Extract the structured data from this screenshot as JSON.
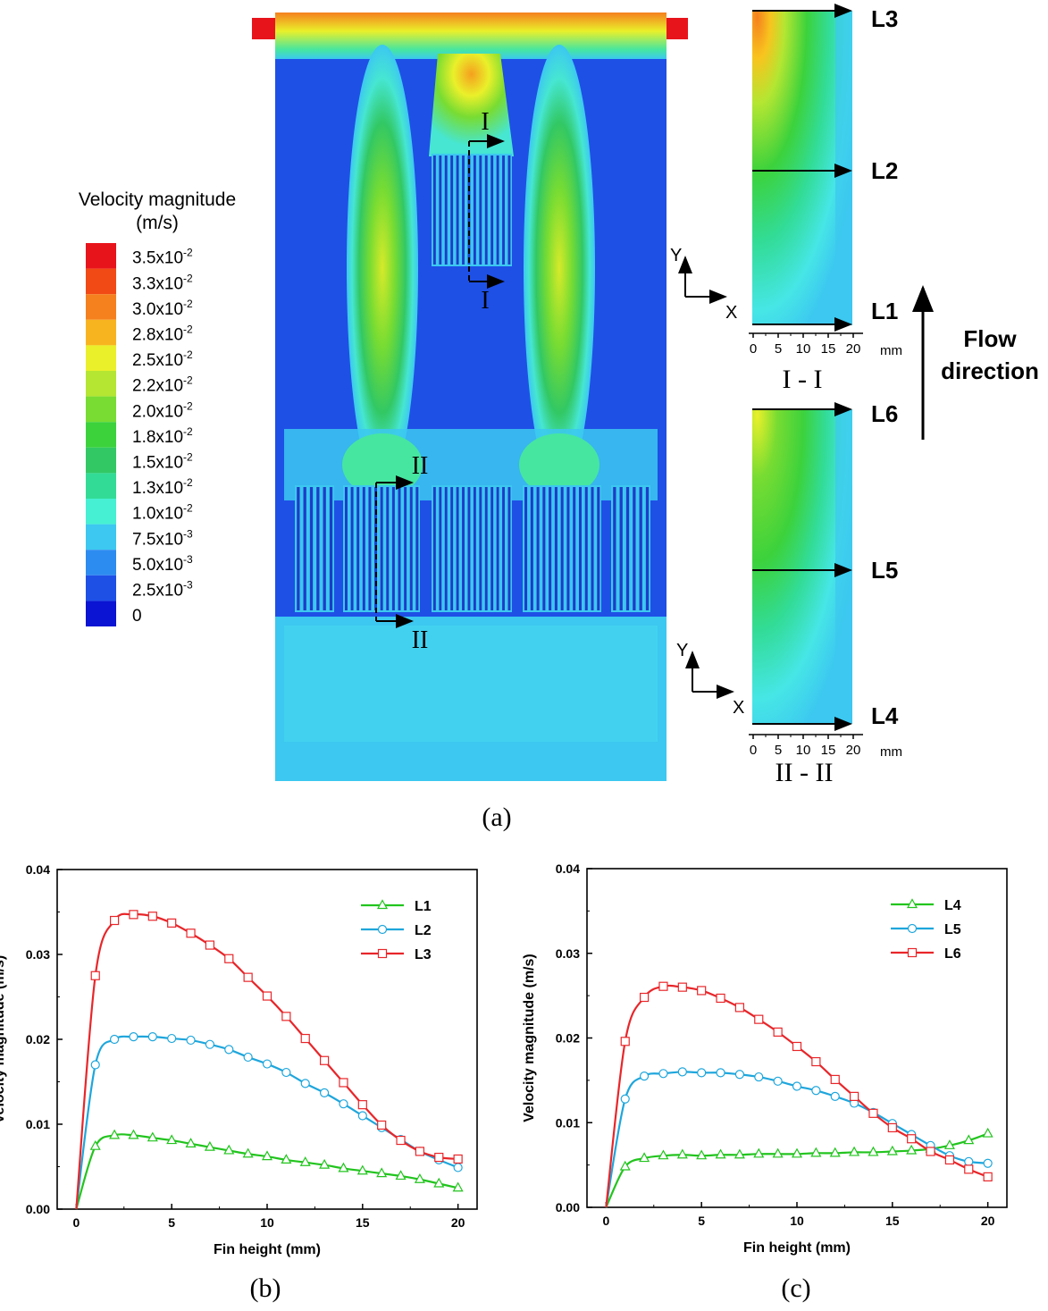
{
  "captions": {
    "a": "(a)",
    "b": "(b)",
    "c": "(c)"
  },
  "legend": {
    "title_line1": "Velocity magnitude",
    "title_line2": "(m/s)",
    "labels": [
      "3.5x10-2",
      "3.3x10-2",
      "3.0x10-2",
      "2.8x10-2",
      "2.5x10-2",
      "2.2x10-2",
      "2.0x10-2",
      "1.8x10-2",
      "1.5x10-2",
      "1.3x10-2",
      "1.0x10-2",
      "7.5x10-3",
      "5.0x10-3",
      "2.5x10-3",
      "0"
    ],
    "colors": [
      "#e8141c",
      "#f24a14",
      "#f5801e",
      "#f8b41e",
      "#eaf02a",
      "#b4e632",
      "#78dc32",
      "#3cd23c",
      "#32c864",
      "#32dc96",
      "#46f0d2",
      "#3cc8f0",
      "#2d8cf0",
      "#1e50e6",
      "#0a14d2"
    ]
  },
  "contour": {
    "section_markers": [
      "I",
      "I",
      "II",
      "II"
    ],
    "axes": {
      "y": "Y",
      "x": "X"
    }
  },
  "sections": {
    "s1": {
      "label": "I - I",
      "lines": [
        "L3",
        "L2",
        "L1"
      ],
      "ticks": [
        "0",
        "5",
        "10",
        "15",
        "20"
      ],
      "unit": "mm"
    },
    "s2": {
      "label": "II - II",
      "lines": [
        "L6",
        "L5",
        "L4"
      ],
      "ticks": [
        "0",
        "5",
        "10",
        "15",
        "20"
      ],
      "unit": "mm"
    }
  },
  "flow": {
    "line1": "Flow",
    "line2": "direction"
  },
  "chart_data": [
    {
      "type": "line",
      "id": "b",
      "xlabel": "Fin height (mm)",
      "ylabel": "Velocity magnitude (m/s)",
      "xlim": [
        -1,
        21
      ],
      "ylim": [
        0,
        0.04
      ],
      "xticks": [
        "0",
        "5",
        "10",
        "15",
        "20"
      ],
      "yticks": [
        "0.00",
        "0.01",
        "0.02",
        "0.03",
        "0.04"
      ],
      "legend_position": "top-right",
      "x": [
        0,
        1,
        2,
        3,
        4,
        5,
        6,
        7,
        8,
        9,
        10,
        11,
        12,
        13,
        14,
        15,
        16,
        17,
        18,
        19,
        20
      ],
      "series": [
        {
          "name": "L1",
          "color": "#22c41e",
          "marker": "triangle",
          "values": [
            0,
            0.0074,
            0.0087,
            0.0087,
            0.0084,
            0.0081,
            0.0077,
            0.0073,
            0.0069,
            0.0065,
            0.0062,
            0.0058,
            0.0055,
            0.0052,
            0.0048,
            0.0045,
            0.0042,
            0.0039,
            0.0035,
            0.003,
            0.0025
          ]
        },
        {
          "name": "L2",
          "color": "#1ea6dc",
          "marker": "circle",
          "values": [
            0,
            0.017,
            0.02,
            0.0203,
            0.0203,
            0.0201,
            0.0199,
            0.0194,
            0.0188,
            0.0179,
            0.0171,
            0.0161,
            0.0148,
            0.0137,
            0.0124,
            0.011,
            0.0096,
            0.0082,
            0.0068,
            0.0058,
            0.0049
          ]
        },
        {
          "name": "L3",
          "color": "#e8262a",
          "marker": "square",
          "values": [
            0,
            0.0275,
            0.034,
            0.0347,
            0.0345,
            0.0337,
            0.0325,
            0.0311,
            0.0295,
            0.0273,
            0.0251,
            0.0227,
            0.0201,
            0.0175,
            0.0149,
            0.0123,
            0.0099,
            0.0081,
            0.0068,
            0.0061,
            0.0059
          ]
        }
      ]
    },
    {
      "type": "line",
      "id": "c",
      "xlabel": "Fin height (mm)",
      "ylabel": "Velocity magnitude (m/s)",
      "xlim": [
        -1,
        21
      ],
      "ylim": [
        0,
        0.04
      ],
      "xticks": [
        "0",
        "5",
        "10",
        "15",
        "20"
      ],
      "yticks": [
        "0.00",
        "0.01",
        "0.02",
        "0.03",
        "0.04"
      ],
      "legend_position": "top-right",
      "x": [
        0,
        1,
        2,
        3,
        4,
        5,
        6,
        7,
        8,
        9,
        10,
        11,
        12,
        13,
        14,
        15,
        16,
        17,
        18,
        19,
        20
      ],
      "series": [
        {
          "name": "L4",
          "color": "#22c41e",
          "marker": "triangle",
          "values": [
            0,
            0.0048,
            0.0058,
            0.0061,
            0.0062,
            0.0061,
            0.0062,
            0.0062,
            0.0063,
            0.0063,
            0.0063,
            0.0064,
            0.0064,
            0.0065,
            0.0065,
            0.0066,
            0.0067,
            0.0069,
            0.0073,
            0.0079,
            0.0087
          ]
        },
        {
          "name": "L5",
          "color": "#1ea6dc",
          "marker": "circle",
          "values": [
            0,
            0.0128,
            0.0155,
            0.0158,
            0.016,
            0.0159,
            0.0159,
            0.0157,
            0.0154,
            0.0149,
            0.0143,
            0.0138,
            0.0131,
            0.0123,
            0.0112,
            0.0099,
            0.0086,
            0.0073,
            0.0061,
            0.0054,
            0.0052
          ]
        },
        {
          "name": "L6",
          "color": "#e8262a",
          "marker": "square",
          "values": [
            0,
            0.0196,
            0.0248,
            0.0261,
            0.026,
            0.0256,
            0.0247,
            0.0236,
            0.0222,
            0.0207,
            0.019,
            0.0172,
            0.0151,
            0.0131,
            0.0111,
            0.0094,
            0.0081,
            0.0066,
            0.0056,
            0.0045,
            0.0036
          ]
        }
      ]
    }
  ]
}
